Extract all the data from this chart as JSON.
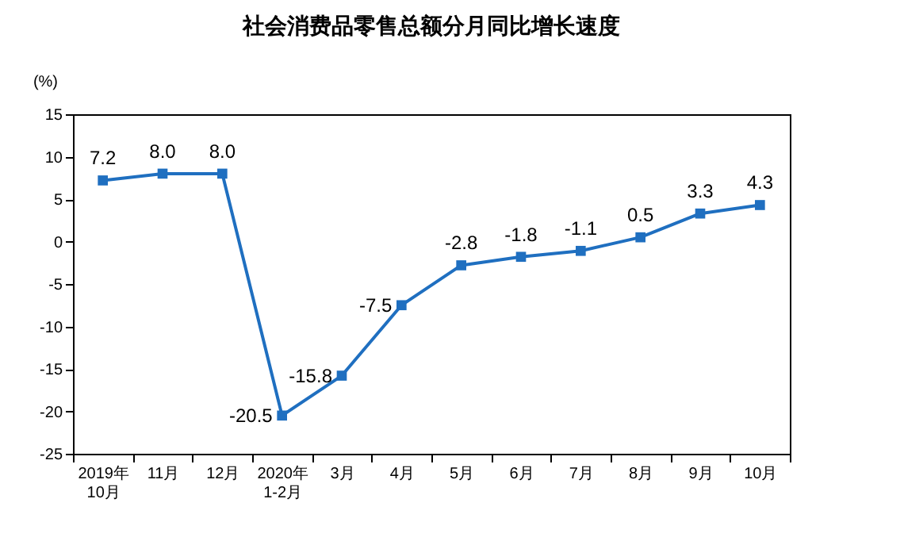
{
  "chart_data": {
    "type": "line",
    "title": "社会消费品零售总额分月同比增长速度",
    "ylabel": "(%)",
    "categories": [
      "2019年\n10月",
      "11月",
      "12月",
      "2020年\n1-2月",
      "3月",
      "4月",
      "5月",
      "6月",
      "7月",
      "8月",
      "9月",
      "10月"
    ],
    "series": [
      {
        "color": "#1f6fc0",
        "values": [
          7.2,
          8.0,
          8.0,
          -20.5,
          -15.8,
          -7.5,
          -2.8,
          -1.8,
          -1.1,
          0.5,
          3.3,
          4.3
        ]
      }
    ],
    "ylim": [
      -25,
      15
    ],
    "yticks": [
      -25,
      -20,
      -15,
      -10,
      -5,
      0,
      5,
      10,
      15
    ],
    "value_labels": [
      "7.2",
      "8.0",
      "8.0",
      "-20.5",
      "-15.8",
      "-7.5",
      "-2.8",
      "-1.8",
      "-1.1",
      "0.5",
      "3.3",
      "4.3"
    ],
    "marker": "square",
    "line_style": "solid",
    "grid": false
  }
}
